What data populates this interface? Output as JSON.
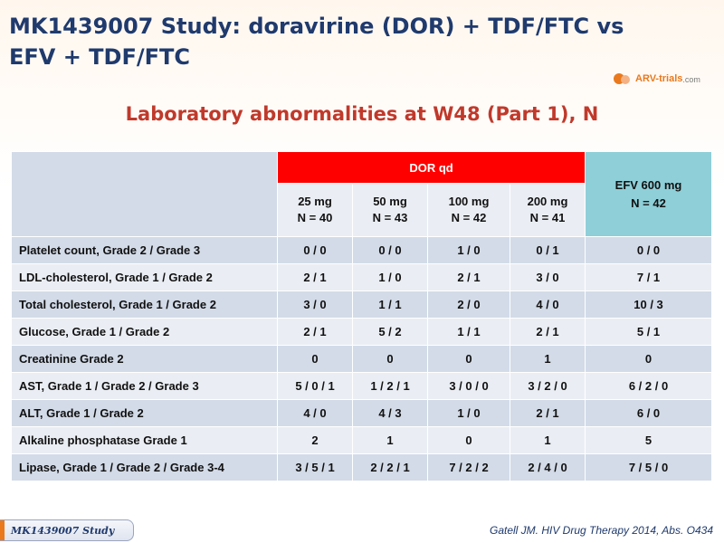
{
  "slide": {
    "title": "MK1439007 Study: doravirine (DOR) + TDF/FTC vs EFV + TDF/FTC",
    "logo_text": "ARV-trials",
    "logo_suffix": ".com",
    "subtitle": "Laboratory abnormalities at W48 (Part 1), N"
  },
  "table": {
    "group_header": "DOR qd",
    "dose_columns": [
      {
        "dose": "25 mg",
        "n": "N = 40"
      },
      {
        "dose": "50 mg",
        "n": "N = 43"
      },
      {
        "dose": "100 mg",
        "n": "N = 42"
      },
      {
        "dose": "200 mg",
        "n": "N = 41"
      }
    ],
    "comparator": {
      "dose": "EFV 600 mg",
      "n": "N = 42"
    },
    "rows": [
      {
        "label": "Platelet count, Grade 2 / Grade 3",
        "values": [
          "0 / 0",
          "0 / 0",
          "1 / 0",
          "0 / 1",
          "0 / 0"
        ]
      },
      {
        "label": "LDL-cholesterol, Grade 1 / Grade 2",
        "values": [
          "2 / 1",
          "1 / 0",
          "2 / 1",
          "3 / 0",
          "7 / 1"
        ]
      },
      {
        "label": "Total cholesterol, Grade 1 / Grade 2",
        "values": [
          "3 / 0",
          "1 / 1",
          "2 / 0",
          "4 / 0",
          "10 / 3"
        ]
      },
      {
        "label": "Glucose, Grade 1 / Grade 2",
        "values": [
          "2 / 1",
          "5 / 2",
          "1 / 1",
          "2 / 1",
          "5 / 1"
        ]
      },
      {
        "label": "Creatinine Grade 2",
        "values": [
          "0",
          "0",
          "0",
          "1",
          "0"
        ]
      },
      {
        "label": "AST, Grade 1 / Grade 2 / Grade 3",
        "values": [
          "5 / 0 / 1",
          "1 / 2 / 1",
          "3 / 0 / 0",
          "3 / 2 / 0",
          "6 / 2 / 0"
        ]
      },
      {
        "label": "ALT, Grade 1 / Grade 2",
        "values": [
          "4 / 0",
          "4 / 3",
          "1 / 0",
          "2 / 1",
          "6 / 0"
        ]
      },
      {
        "label": "Alkaline phosphatase Grade 1",
        "values": [
          "2",
          "1",
          "0",
          "1",
          "5"
        ]
      },
      {
        "label": "Lipase, Grade 1 / Grade 2 / Grade 3-4",
        "values": [
          "3 / 5 / 1",
          "2 / 2 / 1",
          "7 / 2 / 2",
          "2 / 4 / 0",
          "7 / 5 / 0"
        ]
      }
    ]
  },
  "footer": {
    "study_tab": "MK1439007 Study",
    "citation": "Gatell JM.  HIV Drug Therapy 2014, Abs. O434"
  }
}
